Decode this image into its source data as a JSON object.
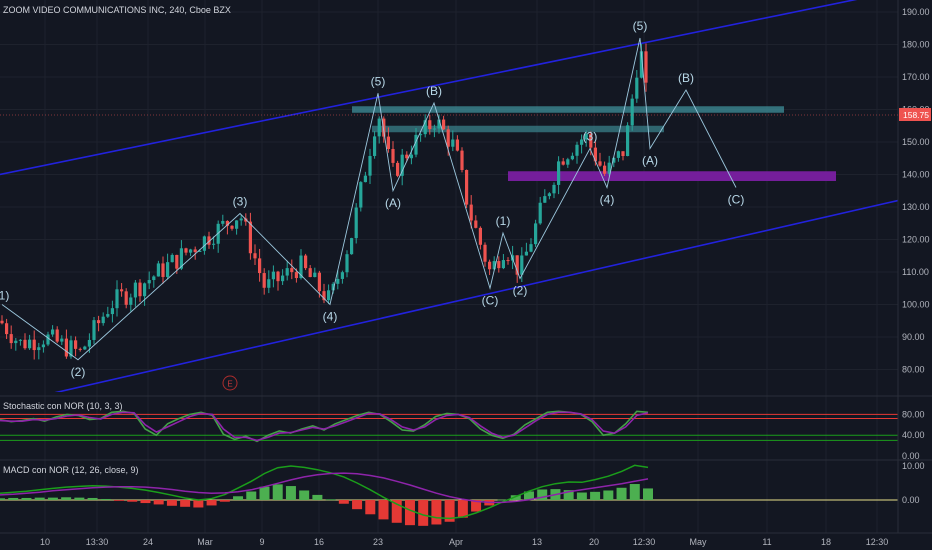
{
  "title": "ZOOM VIDEO COMMUNICATIONS INC, 240, Cboe BZX",
  "e_marker": "E",
  "price_label": "158.75",
  "colors": {
    "up": "#26a69a",
    "down": "#ef5350",
    "channel": "#2222dd",
    "zone_teal": "#3f8f9a",
    "zone_purple": "#7a1fa2",
    "wave": "#9cc8de",
    "macd_line": "#1b9e1b",
    "signal_line": "#8e24aa"
  },
  "stoch_label": "Stochastic con NOR (10, 3, 3)",
  "macd_label": "MACD con NOR (12, 26, close, 9)",
  "chart_data": [
    {
      "type": "candlestick",
      "title": "ZOOM VIDEO COMMUNICATIONS INC, 240, Cboe BZX",
      "y_ticks": [
        "190.00",
        "180.00",
        "170.00",
        "160.00",
        "150.00",
        "140.00",
        "130.00",
        "120.00",
        "110.00",
        "100.00",
        "90.00",
        "80.00"
      ],
      "x_ticks": [
        "10",
        "13:30",
        "24",
        "Mar",
        "9",
        "16",
        "23",
        "Apr",
        "13",
        "20",
        "12:30",
        "May",
        "11",
        "18",
        "12:30"
      ],
      "ylim": [
        72,
        193
      ],
      "last_price": 158.75,
      "elliott_wave_points": [
        {
          "label": "(1)",
          "date": "Feb 6",
          "price": 100
        },
        {
          "label": "(2)",
          "date": "Feb 13",
          "price": 83
        },
        {
          "label": "(3)",
          "date": "Mar 5",
          "price": 128
        },
        {
          "label": "(4)",
          "date": "Mar 19",
          "price": 100
        },
        {
          "label": "(5)",
          "date": "Mar 23",
          "price": 165
        },
        {
          "label": "(A)",
          "date": "Mar 24",
          "price": 135
        },
        {
          "label": "(B)",
          "date": "Mar 31",
          "price": 162
        },
        {
          "label": "(C)",
          "date": "Apr 6",
          "price": 105
        },
        {
          "label": "(1)",
          "date": "Apr 8",
          "price": 122
        },
        {
          "label": "(2)",
          "date": "Apr 9",
          "price": 108
        },
        {
          "label": "(3)",
          "date": "Apr 16",
          "price": 148
        },
        {
          "label": "(4)",
          "date": "Apr 20",
          "price": 136
        },
        {
          "label": "(5)",
          "date": "Apr 22",
          "price": 182
        },
        {
          "label": "(A)",
          "date": "Apr 23",
          "price": 148
        },
        {
          "label": "(B)",
          "date": "Apr 27",
          "price": 166
        },
        {
          "label": "(C)",
          "date": "Apr 30",
          "price": 136
        }
      ],
      "zones": [
        {
          "name": "resistance zone 1",
          "low": 159,
          "high": 161
        },
        {
          "name": "resistance zone 2",
          "low": 153,
          "high": 155
        },
        {
          "name": "support zone",
          "low": 138,
          "high": 141
        }
      ],
      "channel_lines": [
        "upper channel",
        "lower channel"
      ]
    },
    {
      "type": "line",
      "title": "Stochastic con NOR (10, 3, 3)",
      "y_ticks": [
        "80.00",
        "40.00",
        "0.00"
      ],
      "levels": [
        80,
        72,
        40,
        30
      ],
      "series": [
        {
          "name": "%K",
          "values": [
            70,
            66,
            68,
            72,
            67,
            75,
            80,
            78,
            70,
            72,
            84,
            86,
            82,
            52,
            40,
            62,
            72,
            80,
            84,
            78,
            42,
            32,
            38,
            28,
            40,
            48,
            44,
            52,
            58,
            50,
            62,
            70,
            78,
            84,
            80,
            66,
            50,
            48,
            60,
            76,
            82,
            80,
            72,
            52,
            40,
            34,
            42,
            60,
            72,
            84,
            86,
            84,
            80,
            66,
            40,
            44,
            62,
            86,
            84
          ]
        },
        {
          "name": "%D",
          "values": [
            68,
            67,
            67,
            70,
            69,
            72,
            77,
            79,
            74,
            71,
            80,
            84,
            83,
            60,
            46,
            56,
            66,
            76,
            82,
            80,
            52,
            36,
            36,
            30,
            36,
            44,
            45,
            50,
            55,
            52,
            58,
            66,
            74,
            82,
            81,
            70,
            56,
            50,
            56,
            70,
            78,
            80,
            74,
            58,
            44,
            36,
            40,
            54,
            68,
            80,
            84,
            84,
            81,
            70,
            48,
            44,
            56,
            78,
            83
          ]
        }
      ]
    },
    {
      "type": "bar",
      "title": "MACD con NOR (12, 26, close, 9)",
      "y_ticks": [
        "10.00",
        "0.00"
      ],
      "series": [
        {
          "name": "MACD",
          "values": [
            2.0,
            2.3,
            2.6,
            3.0,
            3.4,
            3.8,
            4.0,
            4.2,
            4.1,
            3.8,
            3.4,
            2.9,
            2.2,
            1.4,
            0.6,
            0.0,
            0.4,
            1.6,
            3.5,
            5.5,
            7.8,
            9.5,
            10.0,
            9.6,
            8.9,
            8.0,
            6.8,
            5.0,
            3.0,
            0.8,
            -1.2,
            -3.0,
            -4.4,
            -5.2,
            -5.4,
            -5.0,
            -3.8,
            -2.3,
            -0.6,
            1.0,
            2.6,
            3.9,
            4.8,
            5.3,
            5.2,
            6.0,
            7.0,
            8.4,
            10.2,
            9.6
          ]
        },
        {
          "name": "Signal",
          "values": [
            1.5,
            1.7,
            2.0,
            2.3,
            2.7,
            3.0,
            3.3,
            3.6,
            3.8,
            3.9,
            3.9,
            3.8,
            3.5,
            3.1,
            2.6,
            2.2,
            2.0,
            2.1,
            2.4,
            3.0,
            3.9,
            4.9,
            5.9,
            6.8,
            7.4,
            7.8,
            7.9,
            7.7,
            7.2,
            6.5,
            5.5,
            4.4,
            3.2,
            2.0,
            1.0,
            0.2,
            -0.4,
            -0.7,
            -0.7,
            -0.4,
            0.1,
            0.8,
            1.6,
            2.4,
            3.0,
            3.6,
            4.2,
            4.8,
            5.5,
            6.2
          ]
        },
        {
          "name": "Histogram",
          "values": [
            0.5,
            0.6,
            0.6,
            0.7,
            0.7,
            0.8,
            0.7,
            0.6,
            0.3,
            -0.1,
            -0.5,
            -0.9,
            -1.3,
            -1.7,
            -2.0,
            -2.2,
            -1.6,
            -0.5,
            1.1,
            2.5,
            3.9,
            4.6,
            4.1,
            2.8,
            1.5,
            0.2,
            -1.1,
            -2.7,
            -4.2,
            -5.7,
            -6.7,
            -7.4,
            -7.6,
            -7.2,
            -6.4,
            -5.2,
            -3.4,
            -1.6,
            0.1,
            1.4,
            2.5,
            3.1,
            3.2,
            2.9,
            2.2,
            2.4,
            2.8,
            3.6,
            4.7,
            3.4
          ]
        }
      ]
    }
  ]
}
